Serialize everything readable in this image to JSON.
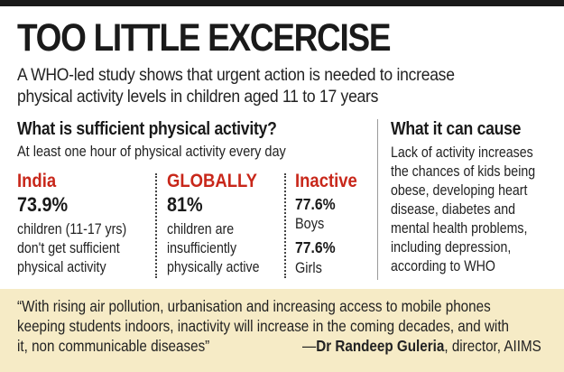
{
  "title": "TOO LITTLE EXCERCISE",
  "intro": {
    "line1": "A WHO-led study shows that urgent action is needed to increase",
    "line2": "physical activity levels in children aged 11 to 17 years"
  },
  "sufficient": {
    "heading": "What is sufficient physical activity?",
    "subtext": "At least one hour of physical activity every day"
  },
  "india": {
    "label": "India",
    "value": "73.9%",
    "lines": [
      "children (11-17 yrs)",
      "don't get sufficient",
      "physical activity"
    ]
  },
  "globally": {
    "label": "GLOBALLY",
    "value": "81%",
    "lines": [
      "children are",
      "insufficiently",
      "physically active"
    ]
  },
  "inactive": {
    "label": "Inactive",
    "boys_value": "77.6%",
    "boys_label": "Boys",
    "girls_value": "77.6%",
    "girls_label": "Girls"
  },
  "cause": {
    "heading": "What it can cause",
    "lines": [
      "Lack of activity increases",
      "the chances of kids being",
      "obese, developing heart",
      "disease, diabetes and",
      "mental health problems,",
      "including depression,",
      "according to WHO"
    ]
  },
  "quote": {
    "line1": "“With rising air pollution, urbanisation and increasing access to mobile phones",
    "line2": "keeping students indoors, inactivity will increase in the coming decades, and with",
    "line3": "it, non communicable diseases”",
    "attribution_dash": "—",
    "attribution_name": "Dr Randeep Guleria",
    "attribution_role": ", director, AIIMS"
  },
  "colors": {
    "accent_red": "#c8271a",
    "quote_background": "#f6ebc6",
    "top_bar": "#1a1a1a"
  }
}
